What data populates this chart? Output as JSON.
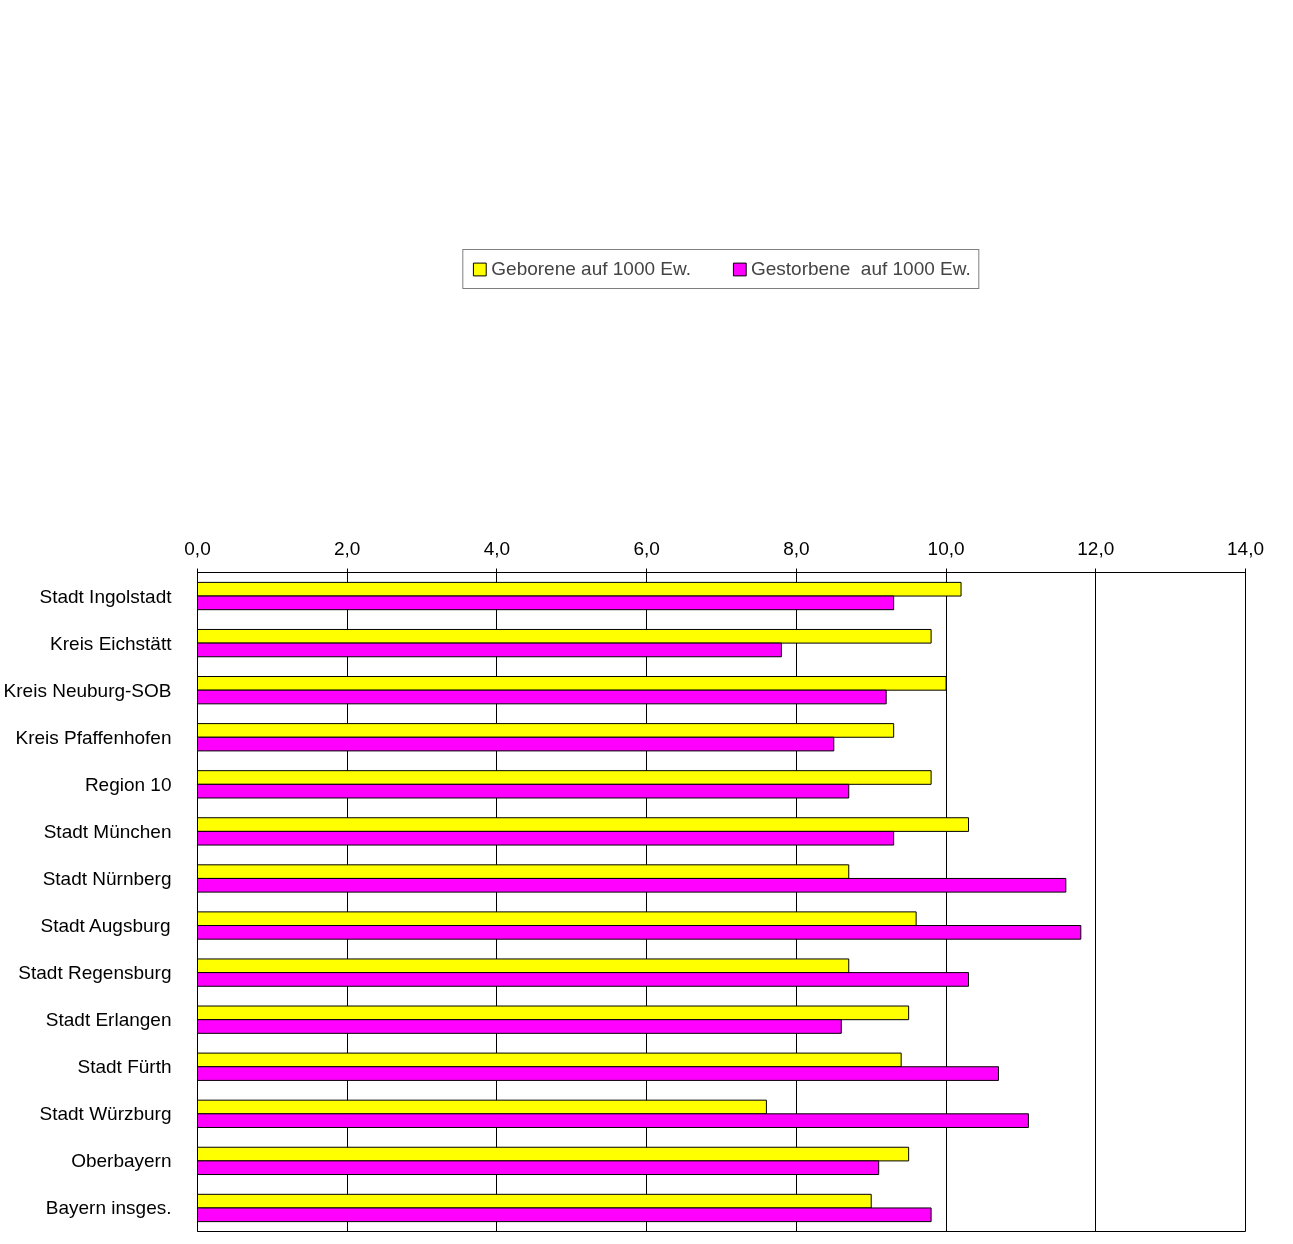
{
  "chart_data": {
    "type": "bar",
    "orientation": "horizontal",
    "categories": [
      "Stadt Ingolstadt",
      "Kreis Eichstätt",
      "Kreis Neuburg-SOB",
      "Kreis Pfaffenhofen",
      "Region 10",
      "Stadt München",
      "Stadt Nürnberg",
      "Stadt Augsburg",
      "Stadt Regensburg",
      "Stadt Erlangen",
      "Stadt Fürth",
      "Stadt Würzburg",
      "Oberbayern",
      "Bayern insges."
    ],
    "series": [
      {
        "name": "Geborene auf 1000 Ew.",
        "color": "#ffff00",
        "values": [
          10.2,
          9.8,
          10.0,
          9.3,
          9.8,
          10.3,
          8.7,
          9.6,
          8.7,
          9.5,
          9.4,
          7.6,
          9.5,
          9.0
        ]
      },
      {
        "name": "Gestorbene  auf 1000 Ew.",
        "color": "#ff00ff",
        "values": [
          9.3,
          7.8,
          9.2,
          8.5,
          8.7,
          9.3,
          11.6,
          11.8,
          10.3,
          8.6,
          10.7,
          11.1,
          9.1,
          9.8
        ]
      }
    ],
    "xlim": [
      0,
      14
    ],
    "xticks": [
      {
        "value": 0,
        "label": "0,0"
      },
      {
        "value": 2,
        "label": "2,0"
      },
      {
        "value": 4,
        "label": "4,0"
      },
      {
        "value": 6,
        "label": "6,0"
      },
      {
        "value": 8,
        "label": "8,0"
      },
      {
        "value": 10,
        "label": "10,0"
      },
      {
        "value": 12,
        "label": "12,0"
      },
      {
        "value": 14,
        "label": "14,0"
      }
    ],
    "grid": "x",
    "legend": "top"
  }
}
